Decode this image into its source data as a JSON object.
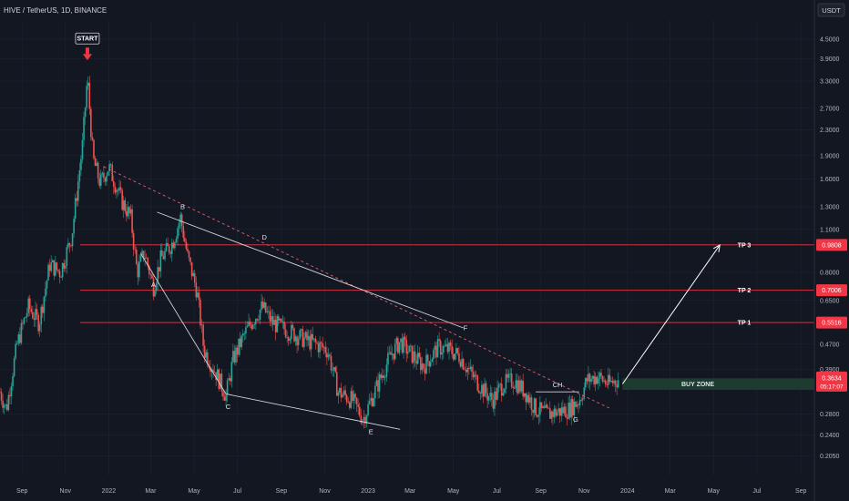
{
  "header": {
    "symbol_text": "HIVE / TetherUS, 1D, BINANCE"
  },
  "currency_button": "USDT",
  "colors": {
    "background": "#131722",
    "grid": "#1f2330",
    "up": "#26a69a",
    "down": "#ef5350",
    "target_line": "#f23645",
    "buy_zone": "#1e3d33",
    "annotation": "#e0e3eb"
  },
  "chart_data": {
    "type": "candlestick",
    "scale": "log",
    "ylim": [
      0.19,
      5.0
    ],
    "y_ticks": [
      "4.5000",
      "3.9000",
      "3.3000",
      "2.7000",
      "2.3000",
      "1.9000",
      "1.6000",
      "1.3000",
      "1.1000",
      "0.8000",
      "0.6500",
      "0.4700",
      "0.3900",
      "0.2800",
      "0.2400",
      "0.2050"
    ],
    "y_tick_values": [
      4.5,
      3.9,
      3.3,
      2.7,
      2.3,
      1.9,
      1.6,
      1.3,
      1.1,
      0.8,
      0.65,
      0.47,
      0.39,
      0.28,
      0.24,
      0.205
    ],
    "x_ticks": [
      "Sep",
      "Nov",
      "2022",
      "Mar",
      "May",
      "Jul",
      "Sep",
      "Nov",
      "2023",
      "Mar",
      "May",
      "Jul",
      "Sep",
      "Nov",
      "2024",
      "Mar",
      "May",
      "Jul",
      "Sep"
    ],
    "x_tick_dates": [
      "2021-09-01",
      "2021-11-01",
      "2022-01-01",
      "2022-03-01",
      "2022-05-01",
      "2022-07-01",
      "2022-09-01",
      "2022-11-01",
      "2023-01-01",
      "2023-03-01",
      "2023-05-01",
      "2023-07-01",
      "2023-09-01",
      "2023-11-01",
      "2024-01-01",
      "2024-03-01",
      "2024-05-01",
      "2024-07-01",
      "2024-09-01"
    ],
    "x_range": [
      "2021-08-01",
      "2024-09-20"
    ],
    "price_anchors": [
      [
        "2021-08-01",
        0.33
      ],
      [
        "2021-08-10",
        0.29
      ],
      [
        "2021-08-25",
        0.47
      ],
      [
        "2021-09-10",
        0.62
      ],
      [
        "2021-09-25",
        0.55
      ],
      [
        "2021-10-10",
        0.85
      ],
      [
        "2021-10-25",
        0.8
      ],
      [
        "2021-11-10",
        1.05
      ],
      [
        "2021-11-25",
        2.05
      ],
      [
        "2021-12-02",
        3.4
      ],
      [
        "2021-12-10",
        1.85
      ],
      [
        "2021-12-20",
        1.55
      ],
      [
        "2022-01-01",
        1.75
      ],
      [
        "2022-01-20",
        1.35
      ],
      [
        "2022-02-01",
        1.2
      ],
      [
        "2022-02-10",
        0.8
      ],
      [
        "2022-02-20",
        0.93
      ],
      [
        "2022-03-05",
        0.72
      ],
      [
        "2022-03-15",
        0.88
      ],
      [
        "2022-04-01",
        1.0
      ],
      [
        "2022-04-12",
        1.2
      ],
      [
        "2022-04-22",
        0.9
      ],
      [
        "2022-05-05",
        0.7
      ],
      [
        "2022-05-15",
        0.45
      ],
      [
        "2022-06-01",
        0.38
      ],
      [
        "2022-06-15",
        0.32
      ],
      [
        "2022-06-25",
        0.42
      ],
      [
        "2022-07-10",
        0.5
      ],
      [
        "2022-07-20",
        0.55
      ],
      [
        "2022-08-05",
        0.62
      ],
      [
        "2022-08-20",
        0.55
      ],
      [
        "2022-09-10",
        0.52
      ],
      [
        "2022-10-01",
        0.49
      ],
      [
        "2022-10-20",
        0.47
      ],
      [
        "2022-11-05",
        0.45
      ],
      [
        "2022-11-20",
        0.33
      ],
      [
        "2022-12-10",
        0.31
      ],
      [
        "2022-12-25",
        0.27
      ],
      [
        "2023-01-10",
        0.33
      ],
      [
        "2023-02-01",
        0.43
      ],
      [
        "2023-02-15",
        0.48
      ],
      [
        "2023-03-01",
        0.44
      ],
      [
        "2023-03-20",
        0.4
      ],
      [
        "2023-04-10",
        0.46
      ],
      [
        "2023-04-25",
        0.45
      ],
      [
        "2023-05-10",
        0.43
      ],
      [
        "2023-05-25",
        0.38
      ],
      [
        "2023-06-10",
        0.34
      ],
      [
        "2023-06-25",
        0.31
      ],
      [
        "2023-07-10",
        0.35
      ],
      [
        "2023-07-25",
        0.36
      ],
      [
        "2023-08-10",
        0.33
      ],
      [
        "2023-08-25",
        0.29
      ],
      [
        "2023-09-10",
        0.28
      ],
      [
        "2023-09-25",
        0.285
      ],
      [
        "2023-10-10",
        0.29
      ],
      [
        "2023-10-25",
        0.31
      ],
      [
        "2023-11-05",
        0.36
      ],
      [
        "2023-11-20",
        0.37
      ],
      [
        "2023-12-05",
        0.35
      ],
      [
        "2023-12-20",
        0.3634
      ]
    ],
    "target_lines": [
      {
        "label": "TP 3",
        "value": 0.9808,
        "price_label": "0.9808"
      },
      {
        "label": "TP 2",
        "value": 0.7006,
        "price_label": "0.7006"
      },
      {
        "label": "TP 1",
        "value": 0.5516,
        "price_label": "0.5516"
      }
    ],
    "current_price": {
      "label": "0.3634",
      "countdown": "05:17:07",
      "value": 0.3634
    },
    "buy_zone": {
      "label": "BUY ZONE",
      "low": 0.335,
      "high": 0.365,
      "start": "2023-12-25",
      "end": "2024-09-20"
    },
    "start_marker": {
      "label": "START",
      "date": "2021-12-02",
      "price": 3.55
    },
    "ch_label": "CH",
    "wave_points": [
      {
        "label": "A",
        "date": "2022-03-05",
        "price": 0.78
      },
      {
        "label": "B",
        "date": "2022-04-15",
        "price": 1.23
      },
      {
        "label": "C",
        "date": "2022-06-18",
        "price": 0.315
      },
      {
        "label": "D",
        "date": "2022-08-08",
        "price": 0.98
      },
      {
        "label": "E",
        "date": "2023-01-05",
        "price": 0.262
      },
      {
        "label": "F",
        "date": "2023-05-18",
        "price": 0.5
      },
      {
        "label": "G",
        "date": "2023-10-20",
        "price": 0.287
      }
    ],
    "wedge_upper": {
      "from": [
        "2022-03-10",
        1.25
      ],
      "to": [
        "2023-05-15",
        0.53
      ]
    },
    "wedge_lower": {
      "from": [
        "2022-06-15",
        0.325
      ],
      "to": [
        "2023-02-15",
        0.25
      ]
    },
    "wedge_left": {
      "from": [
        "2022-02-15",
        0.92
      ],
      "to": [
        "2022-06-15",
        0.325
      ]
    },
    "dashed_trend": {
      "from": [
        "2021-12-25",
        1.75
      ],
      "to": [
        "2023-12-10",
        0.29
      ]
    },
    "ch_line": {
      "from": [
        "2023-08-25",
        0.33
      ],
      "to": [
        "2023-10-25",
        0.33
      ],
      "price": 0.33
    },
    "projection_arrow": {
      "from": [
        "2023-12-25",
        0.35
      ],
      "to": [
        "2024-05-10",
        0.98
      ]
    }
  }
}
